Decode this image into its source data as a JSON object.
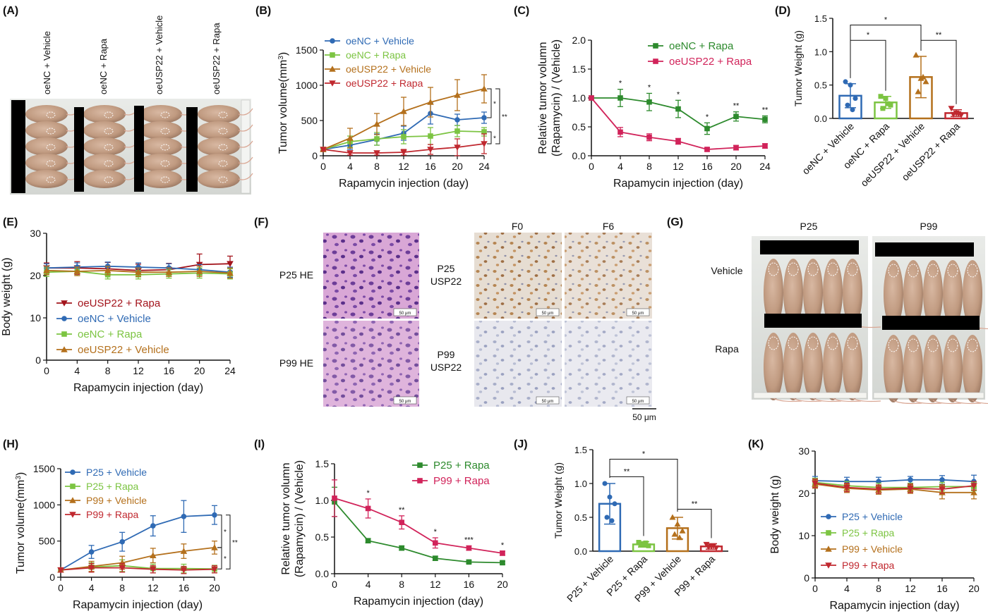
{
  "panel_labels": [
    "(A)",
    "(B)",
    "(C)",
    "(D)",
    "(E)",
    "(F)",
    "(G)",
    "(H)",
    "(I)",
    "(J)",
    "(K)"
  ],
  "colors": {
    "blue": "#2f6ab4",
    "lightgreen": "#7cc442",
    "darkgreen": "#2d8a2d",
    "orange": "#b4701c",
    "red": "#c0282f",
    "crimson": "#d1235a",
    "darkred": "#a3141c",
    "axis": "#111111"
  },
  "panel_a": {
    "labels": [
      "oeNC + Vehicle",
      "oeNC + Rapa",
      "oeUSP22 + Vehicle",
      "oeUSP22 + Rapa"
    ]
  },
  "panel_f": {
    "col_headers": [
      "F0",
      "F6"
    ],
    "row_labels_he": [
      "P25 HE",
      "P99 HE"
    ],
    "row_labels_ihc": [
      [
        "P25",
        "USP22"
      ],
      [
        "P99",
        "USP22"
      ]
    ],
    "scale_text": "50 μm",
    "scale_bar_label": "50 μm"
  },
  "panel_g": {
    "col_headers": [
      "P25",
      "P99"
    ],
    "row_labels": [
      "Vehicle",
      "Rapa"
    ]
  },
  "chart_data": [
    {
      "panel": "B",
      "type": "line",
      "xlabel": "Rapamycin injection (day)",
      "ylabel": "Tumor volume(mm3)",
      "ylabel_parts": [
        "Tumor volume(mm",
        "3",
        ")"
      ],
      "x": [
        0,
        4,
        8,
        12,
        16,
        20,
        24
      ],
      "xlim": [
        0,
        24
      ],
      "ylim": [
        0,
        1500
      ],
      "xticks": [
        0,
        4,
        8,
        12,
        16,
        20,
        24
      ],
      "yticks": [
        0,
        500,
        1000,
        1500
      ],
      "legend_position": "top-left",
      "series": [
        {
          "name": "oeNC + Vehicle",
          "color": "#2f6ab4",
          "marker": "circle",
          "values": [
            90,
            150,
            230,
            320,
            600,
            510,
            540
          ],
          "errors": [
            20,
            60,
            80,
            100,
            150,
            80,
            80
          ]
        },
        {
          "name": "oeNC + Rapa",
          "color": "#7cc442",
          "marker": "square",
          "values": [
            90,
            200,
            240,
            270,
            280,
            350,
            340
          ],
          "errors": [
            20,
            80,
            90,
            100,
            120,
            80,
            60
          ]
        },
        {
          "name": "oeUSP22 + Vehicle",
          "color": "#b4701c",
          "marker": "triangle-up",
          "values": [
            90,
            250,
            450,
            630,
            760,
            860,
            950
          ],
          "errors": [
            20,
            140,
            150,
            200,
            210,
            220,
            200
          ]
        },
        {
          "name": "oeUSP22 + Rapa",
          "color": "#c0282f",
          "marker": "triangle-down",
          "values": [
            90,
            40,
            40,
            50,
            90,
            120,
            170
          ],
          "errors": [
            20,
            30,
            30,
            40,
            70,
            120,
            140
          ]
        }
      ],
      "brackets": [
        {
          "from": 950,
          "to": 540,
          "label": "*",
          "xval": 24
        },
        {
          "from": 340,
          "to": 170,
          "label": "*",
          "xval": 24
        },
        {
          "from": 950,
          "to": 170,
          "label": "**",
          "xval": 24
        }
      ]
    },
    {
      "panel": "C",
      "type": "line",
      "xlabel": "Rapamycin injection (day)",
      "ylabel_lines": [
        "Relative tumor volumn",
        "(Rapamycin) / (Vehicle)"
      ],
      "x": [
        0,
        4,
        8,
        12,
        16,
        20,
        24
      ],
      "xlim": [
        0,
        24
      ],
      "ylim": [
        0,
        2
      ],
      "xticks": [
        0,
        4,
        8,
        12,
        16,
        20,
        24
      ],
      "yticks": [
        "0.0",
        "0.5",
        "1.0",
        "1.5",
        "2.0"
      ],
      "legend_position": "top-right",
      "series": [
        {
          "name": "oeNC + Rapa",
          "color": "#2d8a2d",
          "marker": "square",
          "values": [
            1.0,
            1.0,
            0.93,
            0.81,
            0.47,
            0.68,
            0.63
          ],
          "errors": [
            0,
            0.15,
            0.15,
            0.15,
            0.1,
            0.08,
            0.06
          ]
        },
        {
          "name": "oeUSP22 + Rapa",
          "color": "#d1235a",
          "marker": "square",
          "values": [
            1.0,
            0.41,
            0.32,
            0.25,
            0.11,
            0.14,
            0.17
          ],
          "errors": [
            0,
            0.08,
            0.06,
            0.05,
            0.03,
            0.04,
            0.04
          ]
        }
      ],
      "annotations": [
        {
          "x": 4,
          "label": "*"
        },
        {
          "x": 8,
          "label": "*"
        },
        {
          "x": 12,
          "label": "*"
        },
        {
          "x": 16,
          "label": "*"
        },
        {
          "x": 20,
          "label": "**"
        },
        {
          "x": 24,
          "label": "**"
        }
      ]
    },
    {
      "panel": "D",
      "type": "bar",
      "ylabel": "Tumor Weight (g)",
      "categories": [
        "oeNC + Vehicle",
        "oeNC + Rapa",
        "oeUSP22 + Vehicle",
        "oeUSP22 + Rapa"
      ],
      "colors": [
        "#2f6ab4",
        "#7cc442",
        "#b4701c",
        "#c0282f"
      ],
      "markers": [
        "circle",
        "square",
        "triangle-up",
        "triangle-down"
      ],
      "values": [
        0.34,
        0.24,
        0.62,
        0.08
      ],
      "errors": [
        0.18,
        0.09,
        0.31,
        0.05
      ],
      "points": [
        [
          0.55,
          0.5,
          0.3,
          0.2,
          0.13
        ],
        [
          0.33,
          0.3,
          0.2,
          0.15,
          0.22
        ],
        [
          0.95,
          0.6,
          0.55,
          0.4,
          0.62
        ],
        [
          0.15,
          0.08,
          0.05,
          0.06,
          0.07
        ]
      ],
      "ylim": [
        0,
        1.5
      ],
      "yticks": [
        "0.0",
        "0.5",
        "1.0",
        "1.5"
      ],
      "brackets": [
        {
          "from": 0,
          "to": 1,
          "label": "*",
          "yval": 1.17
        },
        {
          "from": 0,
          "to": 2,
          "label": "*",
          "yval": 1.4
        },
        {
          "from": 2,
          "to": 3,
          "label": "**",
          "yval": 1.17
        }
      ]
    },
    {
      "panel": "E",
      "type": "line",
      "xlabel": "Rapamycin injection (day)",
      "ylabel": "Body weight (g)",
      "x": [
        0,
        4,
        8,
        12,
        16,
        20,
        24
      ],
      "xlim": [
        0,
        24
      ],
      "ylim": [
        0,
        30
      ],
      "xticks": [
        0,
        4,
        8,
        12,
        16,
        20,
        24
      ],
      "yticks": [
        0,
        10,
        20,
        30
      ],
      "legend_position": "bottom-left",
      "series": [
        {
          "name": "oeUSP22  + Rapa",
          "color": "#a3141c",
          "marker": "triangle-down",
          "values": [
            21.8,
            21.8,
            21.6,
            21.2,
            21.4,
            22.6,
            22.8
          ],
          "errors": [
            1.2,
            1.5,
            1.5,
            1.5,
            1.5,
            2.5,
            1.8
          ]
        },
        {
          "name": "oeNC + Vehicle",
          "color": "#2f6ab4",
          "marker": "circle",
          "values": [
            21.8,
            22.0,
            22.2,
            22.0,
            21.8,
            21.4,
            20.8
          ],
          "errors": [
            1.0,
            1.0,
            1.0,
            1.0,
            1.0,
            1.2,
            1.2
          ]
        },
        {
          "name": "oeNC + Rapa",
          "color": "#7cc442",
          "marker": "square",
          "values": [
            20.8,
            21.0,
            20.2,
            20.2,
            20.4,
            20.6,
            20.4
          ],
          "errors": [
            1.0,
            1.0,
            1.0,
            1.0,
            1.0,
            1.2,
            1.2
          ]
        },
        {
          "name": "oeUSP22 + Vehicle",
          "color": "#b4701c",
          "marker": "triangle-up",
          "values": [
            21.2,
            21.0,
            21.2,
            20.8,
            20.8,
            21.0,
            20.6
          ],
          "errors": [
            1.0,
            1.0,
            1.0,
            1.0,
            1.0,
            1.2,
            1.2
          ]
        }
      ]
    },
    {
      "panel": "H",
      "type": "line",
      "xlabel": "Rapamycin injection (day)",
      "ylabel": "Tumor volume(mm3)",
      "ylabel_parts": [
        "Tumor volume(mm",
        "3",
        ")"
      ],
      "x": [
        0,
        4,
        8,
        12,
        16,
        20
      ],
      "xlim": [
        0,
        20
      ],
      "ylim": [
        0,
        1500
      ],
      "xticks": [
        0,
        4,
        8,
        12,
        16,
        20
      ],
      "yticks": [
        0,
        500,
        1000,
        1500
      ],
      "legend_position": "top-left",
      "series": [
        {
          "name": "P25 + Vehicle",
          "color": "#2f6ab4",
          "marker": "circle",
          "values": [
            100,
            350,
            490,
            710,
            840,
            860
          ],
          "errors": [
            30,
            90,
            130,
            140,
            220,
            130
          ]
        },
        {
          "name": "P25 + Rapa",
          "color": "#7cc442",
          "marker": "square",
          "values": [
            100,
            140,
            160,
            120,
            120,
            115
          ],
          "errors": [
            30,
            60,
            80,
            60,
            60,
            50
          ]
        },
        {
          "name": "P99 + Vehicle",
          "color": "#b4701c",
          "marker": "triangle-up",
          "values": [
            100,
            150,
            200,
            300,
            360,
            410
          ],
          "errors": [
            30,
            70,
            90,
            100,
            100,
            90
          ]
        },
        {
          "name": "P99 + Rapa",
          "color": "#c0282f",
          "marker": "triangle-down",
          "values": [
            100,
            130,
            130,
            110,
            100,
            110
          ],
          "errors": [
            30,
            60,
            60,
            50,
            50,
            50
          ]
        }
      ],
      "brackets": [
        {
          "from": 860,
          "to": 410,
          "label": "*",
          "xval": 20
        },
        {
          "from": 410,
          "to": 115,
          "label": "*",
          "xval": 20
        },
        {
          "from": 860,
          "to": 115,
          "label": "**",
          "xval": 20
        }
      ]
    },
    {
      "panel": "I",
      "type": "line",
      "xlabel": "Rapamycin injection (day)",
      "ylabel_lines": [
        "Relative tumor volumn",
        "(Rapamycin) / (Vehicle)"
      ],
      "x": [
        0,
        4,
        8,
        12,
        16,
        20
      ],
      "xlim": [
        0,
        20
      ],
      "ylim": [
        0,
        1.5
      ],
      "xticks": [
        0,
        4,
        8,
        12,
        16,
        20
      ],
      "yticks": [
        "0.0",
        "0.5",
        "1.0",
        "1.5"
      ],
      "legend_position": "top-right",
      "series": [
        {
          "name": "P25 + Rapa",
          "color": "#2d8a2d",
          "marker": "square",
          "values": [
            0.98,
            0.45,
            0.35,
            0.21,
            0.16,
            0.15
          ],
          "errors": [
            0.2,
            0.03,
            0.03,
            0.03,
            0.02,
            0.02
          ]
        },
        {
          "name": "P99 + Rapa",
          "color": "#d1235a",
          "marker": "square",
          "values": [
            1.03,
            0.89,
            0.7,
            0.42,
            0.35,
            0.28
          ],
          "errors": [
            0.25,
            0.13,
            0.09,
            0.07,
            0.03,
            0.03
          ]
        }
      ],
      "annotations": [
        {
          "x": 4,
          "label": "*"
        },
        {
          "x": 8,
          "label": "**"
        },
        {
          "x": 12,
          "label": "*"
        },
        {
          "x": 16,
          "label": "***"
        },
        {
          "x": 20,
          "label": "*"
        }
      ]
    },
    {
      "panel": "J",
      "type": "bar",
      "ylabel": "Tumor Weight (g)",
      "categories": [
        "P25 + Vehicle",
        "P25 + Rapa",
        "P99 + Vehicle",
        "P99 + Rapa"
      ],
      "colors": [
        "#2f6ab4",
        "#7cc442",
        "#b4701c",
        "#c0282f"
      ],
      "markers": [
        "circle",
        "square",
        "triangle-up",
        "triangle-down"
      ],
      "values": [
        0.7,
        0.1,
        0.34,
        0.07
      ],
      "errors": [
        0.3,
        0.04,
        0.16,
        0.04
      ],
      "points": [
        [
          1.0,
          0.8,
          0.7,
          0.5,
          0.45
        ],
        [
          0.13,
          0.1,
          0.08,
          0.09,
          0.12
        ],
        [
          0.5,
          0.4,
          0.3,
          0.25,
          0.2
        ],
        [
          0.1,
          0.07,
          0.05,
          0.06,
          0.08
        ]
      ],
      "ylim": [
        0,
        1.5
      ],
      "yticks": [
        "0.0",
        "0.5",
        "1.0",
        "1.5"
      ],
      "brackets": [
        {
          "from": 0,
          "to": 1,
          "label": "**",
          "yval": 1.1
        },
        {
          "from": 0,
          "to": 2,
          "label": "*",
          "yval": 1.36
        },
        {
          "from": 2,
          "to": 3,
          "label": "**",
          "yval": 0.62
        }
      ]
    },
    {
      "panel": "K",
      "type": "line",
      "xlabel": "Rapamycin injection (day)",
      "ylabel": "Body weight (g)",
      "x": [
        0,
        4,
        8,
        12,
        16,
        20
      ],
      "xlim": [
        0,
        20
      ],
      "ylim": [
        0,
        30
      ],
      "xticks": [
        0,
        4,
        8,
        12,
        16,
        20
      ],
      "yticks": [
        0,
        10,
        20,
        30
      ],
      "legend_position": "bottom-left",
      "series": [
        {
          "name": "P25 + Vehicle",
          "color": "#2f6ab4",
          "marker": "circle",
          "values": [
            23.0,
            22.8,
            22.8,
            23.2,
            23.2,
            22.8
          ],
          "errors": [
            1.0,
            1.0,
            1.0,
            0.8,
            1.0,
            1.5
          ]
        },
        {
          "name": "P25 + Rapa",
          "color": "#7cc442",
          "marker": "square",
          "values": [
            22.6,
            21.8,
            21.4,
            21.4,
            21.6,
            21.6
          ],
          "errors": [
            1.0,
            1.0,
            1.0,
            1.0,
            1.0,
            1.0
          ]
        },
        {
          "name": "P99 + Vehicle",
          "color": "#b4701c",
          "marker": "triangle-up",
          "values": [
            22.2,
            21.2,
            20.8,
            21.0,
            20.2,
            20.2
          ],
          "errors": [
            1.0,
            1.0,
            1.0,
            1.0,
            1.5,
            1.5
          ]
        },
        {
          "name": "P99 + Rapa",
          "color": "#c0282f",
          "marker": "triangle-down",
          "values": [
            22.4,
            21.4,
            21.0,
            21.2,
            21.0,
            21.8
          ],
          "errors": [
            1.0,
            1.0,
            1.0,
            1.0,
            1.0,
            1.0
          ]
        }
      ]
    }
  ]
}
